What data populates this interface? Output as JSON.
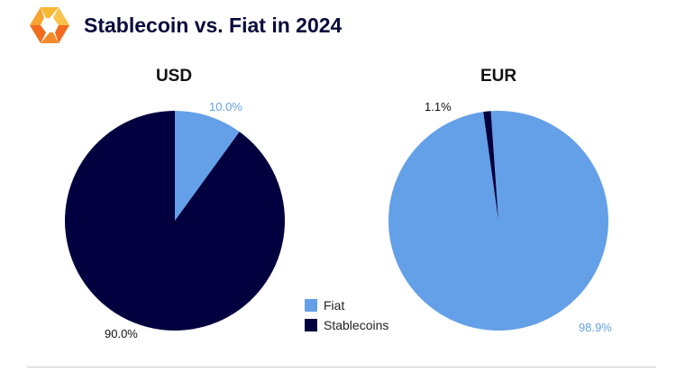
{
  "header": {
    "title": "Stablecoin vs. Fiat in 2024",
    "logo_colors": [
      "#f7b733",
      "#f26b1f"
    ]
  },
  "legend": {
    "items": [
      {
        "name": "Fiat",
        "color": "#64a0e8"
      },
      {
        "name": "Stablecoins",
        "color": "#03003f"
      }
    ]
  },
  "chart_data": [
    {
      "type": "pie",
      "title": "USD",
      "categories": [
        "Fiat",
        "Stablecoins"
      ],
      "values": [
        10.0,
        90.0
      ],
      "labels": [
        "10.0%",
        "90.0%"
      ],
      "colors": [
        "#64a0e8",
        "#03003f"
      ]
    },
    {
      "type": "pie",
      "title": "EUR",
      "categories": [
        "Fiat",
        "Stablecoins"
      ],
      "values": [
        98.9,
        1.1
      ],
      "labels": [
        "98.9%",
        "1.1%"
      ],
      "colors": [
        "#64a0e8",
        "#03003f"
      ]
    }
  ]
}
